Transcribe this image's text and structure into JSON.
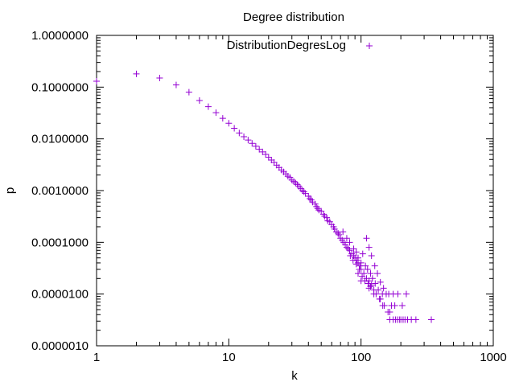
{
  "chart_data": {
    "type": "scatter",
    "title": "Degree distribution",
    "xlabel": "k",
    "ylabel": "p",
    "xscale": "log",
    "yscale": "log",
    "xlim": [
      1,
      1000
    ],
    "ylim": [
      1e-06,
      1
    ],
    "grid": false,
    "legend_position": "top-right",
    "marker": "+",
    "x_ticks": [
      "1",
      "10",
      "100",
      "1000"
    ],
    "y_ticks": [
      "0.0000010",
      "0.0000100",
      "0.0001000",
      "0.0010000",
      "0.0100000",
      "0.1000000",
      "1.0000000"
    ],
    "series": [
      {
        "name": "DistributionDegresLog",
        "color": "#9400d3",
        "points": [
          [
            1,
            0.13
          ],
          [
            2,
            0.18
          ],
          [
            3,
            0.15
          ],
          [
            4,
            0.11
          ],
          [
            5,
            0.08
          ],
          [
            6,
            0.055
          ],
          [
            7,
            0.042
          ],
          [
            8,
            0.032
          ],
          [
            9,
            0.025
          ],
          [
            10,
            0.02
          ],
          [
            11,
            0.016
          ],
          [
            12,
            0.013
          ],
          [
            13,
            0.011
          ],
          [
            14,
            0.0095
          ],
          [
            15,
            0.0082
          ],
          [
            16,
            0.0072
          ],
          [
            17,
            0.0063
          ],
          [
            18,
            0.0056
          ],
          [
            19,
            0.005
          ],
          [
            20,
            0.0044
          ],
          [
            21,
            0.0039
          ],
          [
            22,
            0.0035
          ],
          [
            23,
            0.0031
          ],
          [
            24,
            0.0028
          ],
          [
            25,
            0.0025
          ],
          [
            26,
            0.0023
          ],
          [
            27,
            0.0021
          ],
          [
            28,
            0.0019
          ],
          [
            29,
            0.0018
          ],
          [
            30,
            0.0016
          ],
          [
            31,
            0.0015
          ],
          [
            32,
            0.0014
          ],
          [
            33,
            0.0013
          ],
          [
            34,
            0.0012
          ],
          [
            35,
            0.0011
          ],
          [
            36,
            0.001
          ],
          [
            37,
            0.00095
          ],
          [
            38,
            0.00088
          ],
          [
            40,
            0.00078
          ],
          [
            41,
            0.0007
          ],
          [
            42,
            0.00066
          ],
          [
            43,
            0.0006
          ],
          [
            45,
            0.00055
          ],
          [
            46,
            0.00049
          ],
          [
            47,
            0.00045
          ],
          [
            48,
            0.00042
          ],
          [
            50,
            0.0004
          ],
          [
            52,
            0.00035
          ],
          [
            53,
            0.00032
          ],
          [
            55,
            0.0003
          ],
          [
            56,
            0.00026
          ],
          [
            58,
            0.00025
          ],
          [
            60,
            0.00022
          ],
          [
            62,
            0.0002
          ],
          [
            63,
            0.00018
          ],
          [
            65,
            0.00016
          ],
          [
            67,
            0.00015
          ],
          [
            68,
            0.00014
          ],
          [
            70,
            0.00012
          ],
          [
            72,
            0.00011
          ],
          [
            74,
            0.0001
          ],
          [
            76,
            9e-05
          ],
          [
            78,
            8e-05
          ],
          [
            80,
            7.5e-05
          ],
          [
            82,
            7e-05
          ],
          [
            85,
            6e-05
          ],
          [
            88,
            5.5e-05
          ],
          [
            90,
            5e-05
          ],
          [
            93,
            4.5e-05
          ],
          [
            95,
            4e-05
          ],
          [
            98,
            3.5e-05
          ],
          [
            100,
            3e-05
          ],
          [
            105,
            2.5e-05
          ],
          [
            110,
            2e-05
          ],
          [
            115,
            1.8e-05
          ],
          [
            120,
            1.5e-05
          ],
          [
            125,
            1.2e-05
          ],
          [
            130,
            1e-05
          ],
          [
            140,
            8e-06
          ],
          [
            150,
            6e-06
          ],
          [
            165,
            4.5e-06
          ],
          [
            73,
            0.00016
          ],
          [
            78,
            0.00012
          ],
          [
            82,
            0.0001
          ],
          [
            88,
            7.5e-05
          ],
          [
            92,
            6.5e-05
          ],
          [
            95,
            5e-05
          ],
          [
            100,
            4e-05
          ],
          [
            103,
            6e-05
          ],
          [
            108,
            3.5e-05
          ],
          [
            112,
            3e-05
          ],
          [
            118,
            2.5e-05
          ],
          [
            122,
            2e-05
          ],
          [
            128,
            1.6e-05
          ],
          [
            135,
            1.2e-05
          ],
          [
            145,
            1e-05
          ],
          [
            83,
            5.5e-05
          ],
          [
            87,
            4.5e-05
          ],
          [
            92,
            3.8e-05
          ],
          [
            97,
            3e-05
          ],
          [
            102,
            2.2e-05
          ],
          [
            107,
            1.8e-05
          ],
          [
            113,
            1.6e-05
          ],
          [
            118,
            1.4e-05
          ],
          [
            125,
            1e-05
          ],
          [
            110,
            0.00012
          ],
          [
            115,
            8e-05
          ],
          [
            120,
            5.5e-05
          ],
          [
            127,
            3.5e-05
          ],
          [
            133,
            2.5e-05
          ],
          [
            140,
            1.7e-05
          ],
          [
            148,
            1.3e-05
          ],
          [
            155,
            1e-05
          ],
          [
            162,
            1e-05
          ],
          [
            175,
            1e-05
          ],
          [
            95,
            2.5e-05
          ],
          [
            100,
            1.8e-05
          ],
          [
            115,
            1.3e-05
          ],
          [
            138,
            8e-06
          ],
          [
            146,
            6e-06
          ],
          [
            160,
            4.5e-06
          ],
          [
            170,
            6e-06
          ],
          [
            180,
            6e-06
          ],
          [
            205,
            6e-06
          ],
          [
            165,
            3.2e-06
          ],
          [
            175,
            3.2e-06
          ],
          [
            182,
            3.2e-06
          ],
          [
            188,
            3.2e-06
          ],
          [
            195,
            3.2e-06
          ],
          [
            200,
            3.2e-06
          ],
          [
            208,
            3.2e-06
          ],
          [
            215,
            3.2e-06
          ],
          [
            225,
            3.2e-06
          ],
          [
            240,
            3.2e-06
          ],
          [
            260,
            3.2e-06
          ],
          [
            340,
            3.2e-06
          ],
          [
            190,
            1e-05
          ],
          [
            220,
            1e-05
          ]
        ]
      }
    ]
  }
}
